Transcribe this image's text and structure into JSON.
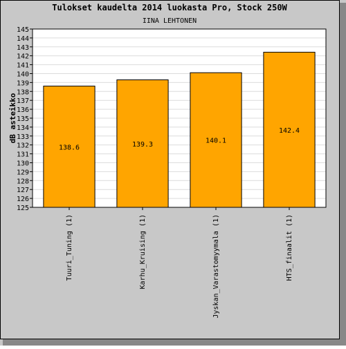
{
  "chart_data": {
    "type": "bar",
    "title": "Tulokset kaudelta 2014 luokasta Pro, Stock 250W",
    "subtitle": "IINA LEHTONEN",
    "xlabel": "",
    "ylabel": "dB asteikko",
    "ylim": [
      125,
      145
    ],
    "ytick_step": 1,
    "grid": true,
    "categories": [
      "Tuuri_Tuning (1)",
      "Karhu_Kruising (1)",
      "Jyskan_Varastomyymala (1)",
      "HTS_finaalit (1)"
    ],
    "values": [
      138.6,
      139.3,
      140.1,
      142.4
    ],
    "value_labels": [
      "138.6",
      "139.3",
      "140.1",
      "142.4"
    ],
    "colors": {
      "bar": "#ffa500",
      "background": "#c8c8c8",
      "plot": "#ffffff",
      "grid": "#dcdcdc",
      "text": "#000000"
    }
  }
}
